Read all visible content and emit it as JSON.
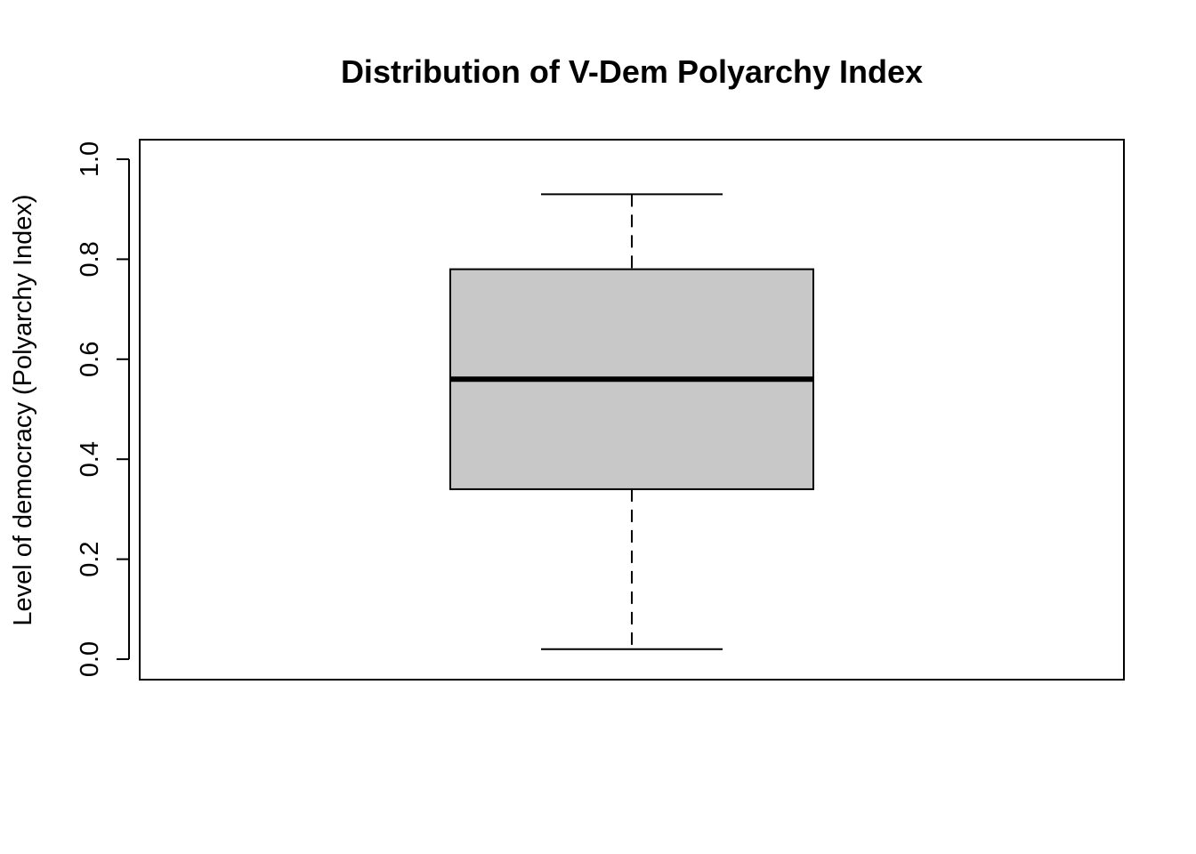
{
  "chart_data": {
    "type": "boxplot",
    "title": "Distribution of V-Dem Polyarchy Index",
    "xlabel": "",
    "ylabel": "Level of democracy (Polyarchy Index)",
    "ylim": [
      0,
      1
    ],
    "y_ticks": [
      0.0,
      0.2,
      0.4,
      0.6,
      0.8,
      1.0
    ],
    "y_tick_labels": [
      "0.0",
      "0.2",
      "0.4",
      "0.6",
      "0.8",
      "1.0"
    ],
    "grid": false,
    "legend": "none",
    "boxes": [
      {
        "whisker_low": 0.02,
        "q1": 0.34,
        "median": 0.56,
        "q3": 0.78,
        "whisker_high": 0.93
      }
    ],
    "colors": {
      "box_fill": "#c8c8c8",
      "stroke": "#000000",
      "background": "#ffffff"
    }
  }
}
